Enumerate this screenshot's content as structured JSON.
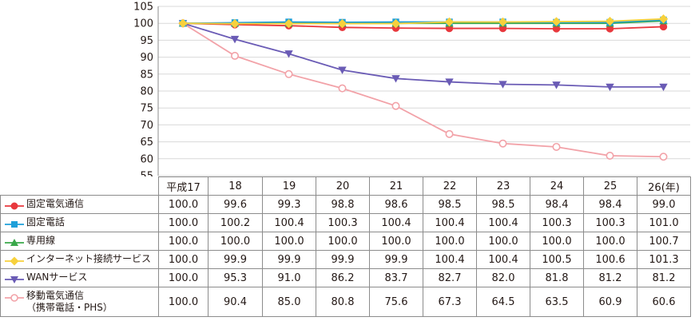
{
  "chart_data": {
    "type": "line",
    "categories": [
      "平成17",
      "18",
      "19",
      "20",
      "21",
      "22",
      "23",
      "24",
      "25",
      "26(年)"
    ],
    "ylim": [
      55,
      105
    ],
    "yticks": [
      55,
      60,
      65,
      70,
      75,
      80,
      85,
      90,
      95,
      100,
      105
    ],
    "grid": true,
    "series": [
      {
        "name": "固定電気通信",
        "color": "#e8383d",
        "marker": "circle-filled",
        "values": [
          "100.0",
          "99.6",
          "99.3",
          "98.8",
          "98.6",
          "98.5",
          "98.5",
          "98.4",
          "98.4",
          "99.0"
        ]
      },
      {
        "name": "固定電話",
        "color": "#1e9fd9",
        "marker": "square",
        "values": [
          "100.0",
          "100.2",
          "100.4",
          "100.3",
          "100.4",
          "100.4",
          "100.4",
          "100.3",
          "100.3",
          "101.0"
        ]
      },
      {
        "name": "専用線",
        "color": "#3aa84a",
        "marker": "triangle-up",
        "values": [
          "100.0",
          "100.0",
          "100.0",
          "100.0",
          "100.0",
          "100.0",
          "100.0",
          "100.0",
          "100.0",
          "100.7"
        ]
      },
      {
        "name": "インターネット接続サービス",
        "color": "#f7d13c",
        "marker": "diamond",
        "values": [
          "100.0",
          "99.9",
          "99.9",
          "99.9",
          "99.9",
          "100.4",
          "100.4",
          "100.5",
          "100.6",
          "101.3"
        ]
      },
      {
        "name": "WANサービス",
        "color": "#6a5bb5",
        "marker": "triangle-down",
        "values": [
          "100.0",
          "95.3",
          "91.0",
          "86.2",
          "83.7",
          "82.7",
          "82.0",
          "81.8",
          "81.2",
          "81.2"
        ]
      },
      {
        "name": "移動電気通信",
        "name_sub": "（携帯電話・PHS）",
        "color": "#f2a2a8",
        "marker": "circle-open",
        "values": [
          "100.0",
          "90.4",
          "85.0",
          "80.8",
          "75.6",
          "67.3",
          "64.5",
          "63.5",
          "60.9",
          "60.6"
        ]
      }
    ]
  }
}
